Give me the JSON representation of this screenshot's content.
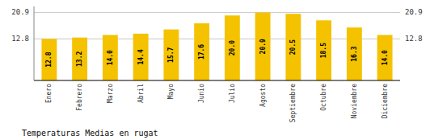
{
  "chart_data": {
    "type": "bar",
    "title": "Temperaturas Medias en rugat",
    "categories": [
      "Enero",
      "Febrero",
      "Marzo",
      "Abril",
      "Mayo",
      "Junio",
      "Julio",
      "Agosto",
      "Septiembre",
      "Octubre",
      "Noviembre",
      "Diciembre"
    ],
    "values": [
      12.8,
      13.2,
      14.0,
      14.4,
      15.7,
      17.6,
      20.0,
      20.9,
      20.5,
      18.5,
      16.3,
      14.0
    ],
    "value_labels": [
      "12.8",
      "13.2",
      "14.0",
      "14.4",
      "15.7",
      "17.6",
      "20.0",
      "20.9",
      "20.5",
      "18.5",
      "16.3",
      "14.0"
    ],
    "data_labels": true,
    "color": "#F5C200",
    "ylim": [
      0,
      22.781
    ],
    "yticks": [
      12.8,
      20.9
    ],
    "grid": true
  }
}
